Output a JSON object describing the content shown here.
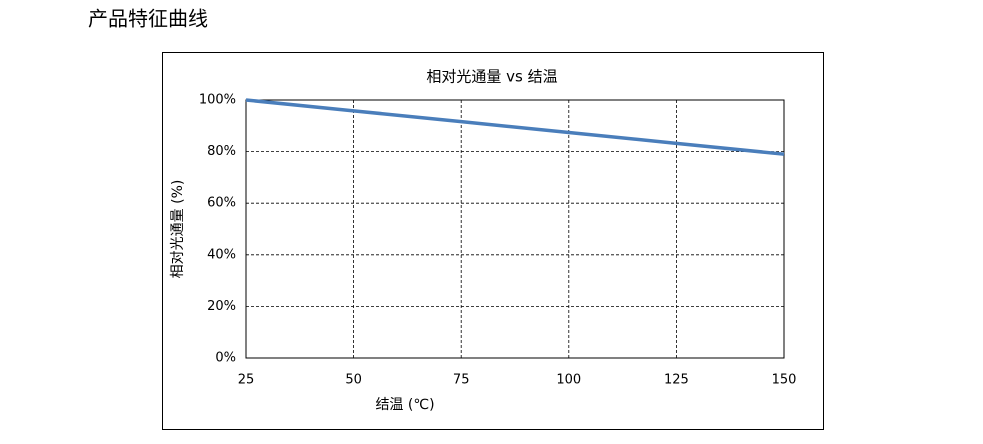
{
  "heading": "产品特征曲线",
  "chart_data": {
    "type": "line",
    "title": "相对光通量 vs 结温",
    "x_label": "结温 (℃)",
    "y_label": "相对光通量 (%)",
    "x": [
      25,
      50,
      75,
      100,
      125,
      150
    ],
    "series": [
      {
        "name": "相对光通量",
        "color": "#4a7ebb",
        "values": [
          100,
          95.8,
          91.6,
          87.4,
          83.2,
          79
        ]
      }
    ],
    "xlim": [
      25,
      150
    ],
    "xticks": [
      25,
      50,
      75,
      100,
      125,
      150
    ],
    "ylim": [
      0,
      100
    ],
    "yticks": [
      {
        "value": 0,
        "label": "0%"
      },
      {
        "value": 20,
        "label": "20%"
      },
      {
        "value": 40,
        "label": "40%"
      },
      {
        "value": 60,
        "label": "60%"
      },
      {
        "value": 80,
        "label": "80%"
      },
      {
        "value": 100,
        "label": "100%"
      }
    ],
    "grid": true,
    "legend": false
  }
}
